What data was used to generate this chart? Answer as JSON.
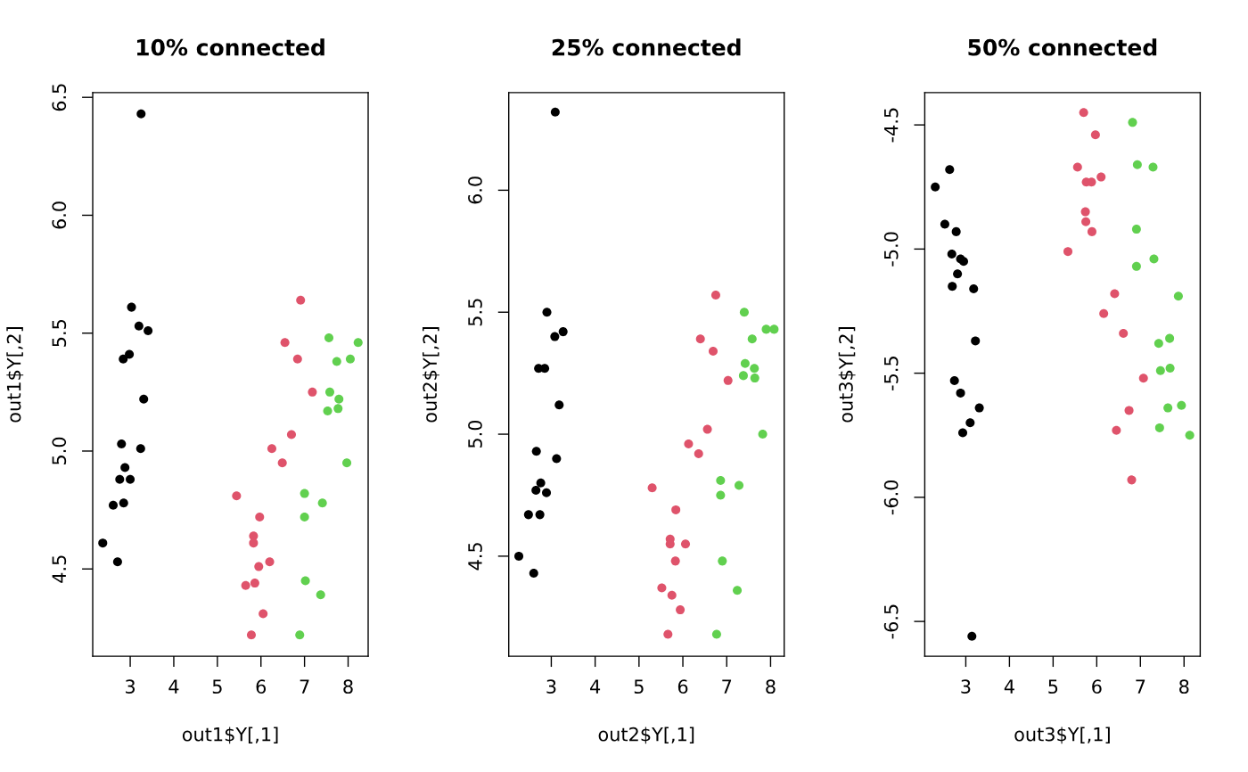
{
  "chart_data": [
    {
      "type": "scatter",
      "title": "10% connected",
      "xlabel": "out1$Y[,1]",
      "ylabel": "out1$Y[,2]",
      "marker": "circle",
      "xlim": [
        2.14,
        8.46
      ],
      "ylim": [
        4.13,
        6.52
      ],
      "xticks": [
        3,
        4,
        5,
        6,
        7,
        8
      ],
      "yticks": [
        4.5,
        {
          "value": 5,
          "label": "5.0"
        },
        5.5,
        {
          "value": 6,
          "label": "6.0"
        },
        6.5
      ],
      "series": [
        {
          "color": "#000000",
          "x": [
            3.25,
            3.03,
            3.2,
            3.41,
            2.98,
            2.84,
            3.31,
            2.8,
            3.24,
            2.88,
            2.76,
            3.0,
            2.61,
            2.85,
            2.37,
            2.71
          ],
          "values": [
            6.43,
            5.61,
            5.53,
            5.51,
            5.41,
            5.39,
            5.22,
            5.03,
            5.01,
            4.93,
            4.88,
            4.88,
            4.77,
            4.78,
            4.61,
            4.53
          ]
        },
        {
          "color": "#df536b",
          "x": [
            6.91,
            6.55,
            6.84,
            7.18,
            6.7,
            6.25,
            6.49,
            5.44,
            5.97,
            5.83,
            5.83,
            6.2,
            5.95,
            5.65,
            5.86,
            6.05,
            5.78
          ],
          "values": [
            5.64,
            5.46,
            5.39,
            5.25,
            5.07,
            5.01,
            4.95,
            4.81,
            4.72,
            4.64,
            4.61,
            4.53,
            4.51,
            4.43,
            4.44,
            4.31,
            4.22
          ]
        },
        {
          "color": "#61d04f",
          "x": [
            7.56,
            8.23,
            7.74,
            8.05,
            7.58,
            7.79,
            7.53,
            7.77,
            7.97,
            7.0,
            7.41,
            7.0,
            7.02,
            7.37,
            6.89
          ],
          "values": [
            5.48,
            5.46,
            5.38,
            5.39,
            5.25,
            5.22,
            5.17,
            5.18,
            4.95,
            4.82,
            4.78,
            4.72,
            4.45,
            4.39,
            4.22
          ]
        }
      ]
    },
    {
      "type": "scatter",
      "title": "25% connected",
      "xlabel": "out2$Y[,1]",
      "ylabel": "out2$Y[,2]",
      "marker": "circle",
      "xlim": [
        2.03,
        8.31
      ],
      "ylim": [
        4.09,
        6.4
      ],
      "xticks": [
        3,
        4,
        5,
        6,
        7,
        8
      ],
      "yticks": [
        4.5,
        {
          "value": 5,
          "label": "5.0"
        },
        5.5,
        {
          "value": 6,
          "label": "6.0"
        }
      ],
      "series": [
        {
          "color": "#000000",
          "x": [
            3.09,
            2.9,
            3.08,
            3.27,
            2.71,
            2.85,
            3.18,
            2.66,
            3.12,
            2.76,
            2.65,
            2.89,
            2.48,
            2.74,
            2.26,
            2.6
          ],
          "values": [
            6.32,
            5.5,
            5.4,
            5.42,
            5.27,
            5.27,
            5.12,
            4.93,
            4.9,
            4.8,
            4.77,
            4.76,
            4.67,
            4.67,
            4.5,
            4.43
          ]
        },
        {
          "color": "#df536b",
          "x": [
            6.75,
            6.4,
            6.69,
            7.03,
            6.56,
            6.13,
            6.36,
            5.3,
            5.84,
            5.71,
            5.71,
            6.06,
            5.83,
            5.52,
            5.75,
            5.94,
            5.66
          ],
          "values": [
            5.57,
            5.39,
            5.34,
            5.22,
            5.02,
            4.96,
            4.92,
            4.78,
            4.69,
            4.57,
            4.55,
            4.55,
            4.48,
            4.37,
            4.34,
            4.28,
            4.18
          ]
        },
        {
          "color": "#61d04f",
          "x": [
            7.4,
            7.9,
            8.08,
            7.58,
            7.42,
            7.63,
            7.38,
            7.64,
            7.82,
            6.86,
            7.28,
            6.86,
            6.9,
            7.24,
            6.77
          ],
          "values": [
            5.5,
            5.43,
            5.43,
            5.39,
            5.29,
            5.27,
            5.24,
            5.23,
            5.0,
            4.81,
            4.79,
            4.75,
            4.48,
            4.36,
            4.18
          ]
        }
      ]
    },
    {
      "type": "scatter",
      "title": "50% connected",
      "xlabel": "out3$Y[,1]",
      "ylabel": "out3$Y[,2]",
      "marker": "circle",
      "xlim": [
        2.06,
        8.37
      ],
      "ylim": [
        -6.64,
        -4.37
      ],
      "xticks": [
        3,
        4,
        5,
        6,
        7,
        8
      ],
      "yticks": [
        {
          "value": -6.5,
          "label": "-6.5"
        },
        {
          "value": -6,
          "label": "-6.0"
        },
        {
          "value": -5.5,
          "label": "-5.5"
        },
        {
          "value": -5,
          "label": "-5.0"
        },
        {
          "value": -4.5,
          "label": "-4.5"
        }
      ],
      "series": [
        {
          "color": "#000000",
          "x": [
            2.63,
            2.3,
            2.52,
            2.78,
            2.68,
            2.88,
            2.95,
            2.81,
            2.69,
            3.18,
            3.22,
            2.74,
            2.88,
            3.31,
            3.1,
            2.93,
            3.14
          ],
          "values": [
            -4.68,
            -4.75,
            -4.9,
            -4.93,
            -5.02,
            -5.04,
            -5.05,
            -5.1,
            -5.15,
            -5.16,
            -5.37,
            -5.53,
            -5.58,
            -5.64,
            -5.7,
            -5.74,
            -6.56
          ]
        },
        {
          "color": "#df536b",
          "x": [
            5.7,
            5.97,
            5.56,
            6.1,
            5.76,
            5.88,
            5.74,
            5.75,
            5.89,
            5.34,
            6.41,
            6.16,
            6.61,
            7.07,
            6.74,
            6.45,
            6.8
          ],
          "values": [
            -4.45,
            -4.54,
            -4.67,
            -4.71,
            -4.73,
            -4.73,
            -4.85,
            -4.89,
            -4.93,
            -5.01,
            -5.18,
            -5.26,
            -5.34,
            -5.52,
            -5.65,
            -5.73,
            -5.93
          ]
        },
        {
          "color": "#61d04f",
          "x": [
            6.82,
            6.93,
            7.29,
            6.91,
            7.31,
            6.91,
            7.87,
            7.42,
            7.67,
            7.46,
            7.68,
            7.63,
            7.94,
            7.44,
            8.13
          ],
          "values": [
            -4.49,
            -4.66,
            -4.67,
            -4.92,
            -5.04,
            -5.07,
            -5.19,
            -5.38,
            -5.36,
            -5.49,
            -5.48,
            -5.64,
            -5.63,
            -5.72,
            -5.75
          ]
        }
      ]
    }
  ]
}
